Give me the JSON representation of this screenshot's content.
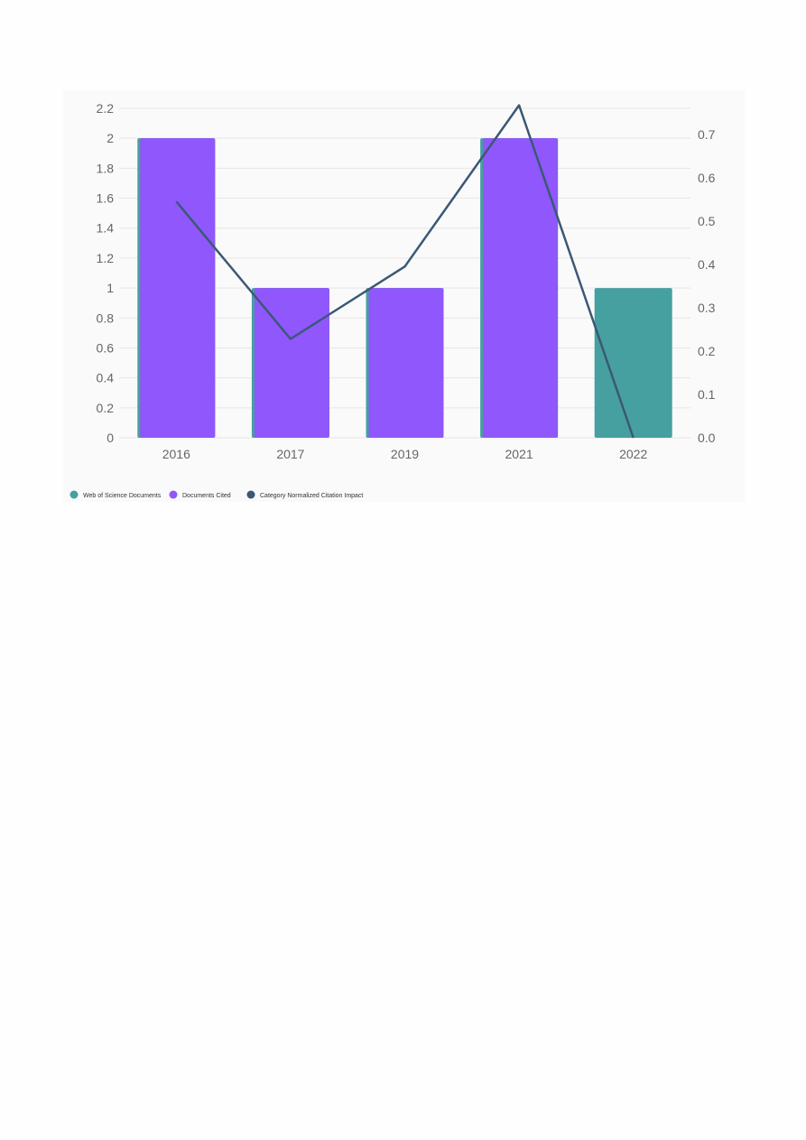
{
  "chart_data": {
    "type": "bar",
    "categories": [
      "2016",
      "2017",
      "2019",
      "2021",
      "2022"
    ],
    "series": [
      {
        "name": "Web of Science Documents",
        "type": "bar",
        "axis": "left",
        "color": "#46a0a0",
        "values": [
          2,
          1,
          1,
          2,
          1
        ]
      },
      {
        "name": "Documents Cited",
        "type": "bar",
        "axis": "left",
        "color": "#8f57fc",
        "values": [
          2,
          1,
          1,
          2,
          0
        ]
      },
      {
        "name": "Category Normalized Citation Impact",
        "type": "line",
        "axis": "right",
        "color": "#3b5874",
        "values": [
          0.545,
          0.228,
          0.395,
          0.767,
          0.0
        ]
      }
    ],
    "left_axis": {
      "ylim": [
        0,
        2.2
      ],
      "ticks": [
        "0",
        "0.2",
        "0.4",
        "0.6",
        "0.8",
        "1",
        "1.2",
        "1.4",
        "1.6",
        "1.8",
        "2",
        "2.2"
      ]
    },
    "right_axis": {
      "ylim": [
        0,
        0.76
      ],
      "ticks": [
        "0.0",
        "0.1",
        "0.2",
        "0.3",
        "0.4",
        "0.5",
        "0.6",
        "0.7"
      ]
    },
    "grid": true,
    "legend_position": "bottom-left"
  }
}
